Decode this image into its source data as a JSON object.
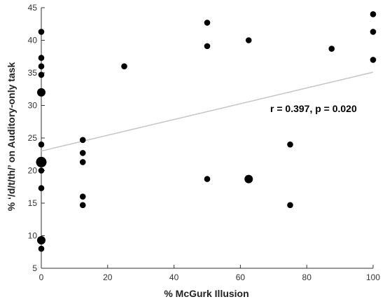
{
  "chart_data": {
    "type": "scatter",
    "xlabel": "% McGurk Illusion",
    "ylabel": "% ‘/d/t/th/’ on Auditory-only task",
    "xlim": [
      0,
      100
    ],
    "ylim": [
      5,
      45
    ],
    "xticks": [
      0,
      20,
      40,
      60,
      80,
      100
    ],
    "yticks": [
      5,
      10,
      15,
      20,
      25,
      30,
      35,
      40,
      45
    ],
    "grid": false,
    "annotation": "r = 0.397, p = 0.020",
    "points": [
      {
        "x": 0,
        "y": 41.3,
        "n": 1
      },
      {
        "x": 0,
        "y": 37.3,
        "n": 1
      },
      {
        "x": 0,
        "y": 36.0,
        "n": 1
      },
      {
        "x": 0,
        "y": 34.7,
        "n": 1
      },
      {
        "x": 0,
        "y": 32.0,
        "n": 2
      },
      {
        "x": 0,
        "y": 24.0,
        "n": 1
      },
      {
        "x": 0,
        "y": 21.3,
        "n": 3
      },
      {
        "x": 0,
        "y": 20.0,
        "n": 1
      },
      {
        "x": 0,
        "y": 17.3,
        "n": 1
      },
      {
        "x": 0,
        "y": 9.3,
        "n": 2
      },
      {
        "x": 0,
        "y": 8.0,
        "n": 1
      },
      {
        "x": 12.5,
        "y": 24.7,
        "n": 1
      },
      {
        "x": 12.5,
        "y": 22.7,
        "n": 1
      },
      {
        "x": 12.5,
        "y": 21.3,
        "n": 1
      },
      {
        "x": 12.5,
        "y": 16.0,
        "n": 1
      },
      {
        "x": 12.5,
        "y": 14.7,
        "n": 1
      },
      {
        "x": 25,
        "y": 36.0,
        "n": 1
      },
      {
        "x": 50,
        "y": 42.7,
        "n": 1
      },
      {
        "x": 50,
        "y": 39.1,
        "n": 1
      },
      {
        "x": 50,
        "y": 18.7,
        "n": 1
      },
      {
        "x": 62.5,
        "y": 40.0,
        "n": 1
      },
      {
        "x": 62.5,
        "y": 18.7,
        "n": 2
      },
      {
        "x": 75,
        "y": 24.0,
        "n": 1
      },
      {
        "x": 75,
        "y": 14.7,
        "n": 1
      },
      {
        "x": 87.5,
        "y": 38.7,
        "n": 1
      },
      {
        "x": 100,
        "y": 44.0,
        "n": 1
      },
      {
        "x": 100,
        "y": 41.3,
        "n": 1
      },
      {
        "x": 100,
        "y": 37.0,
        "n": 1
      }
    ],
    "regression": {
      "x": [
        0,
        100
      ],
      "y": [
        23.0,
        35.1
      ]
    },
    "colors": {
      "points": "#000000",
      "regression": "#c8c8c8",
      "axis": "#333333"
    }
  }
}
